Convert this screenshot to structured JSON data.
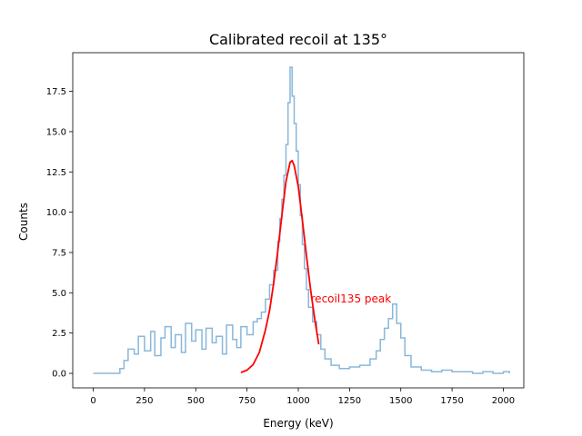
{
  "chart_data": {
    "type": "line",
    "title": "Calibrated recoil at 135°",
    "xlabel": "Energy (keV)",
    "ylabel": "Counts",
    "xlim": [
      -100,
      2100
    ],
    "ylim": [
      -0.9,
      19.9
    ],
    "xticks": [
      0,
      250,
      500,
      750,
      1000,
      1250,
      1500,
      1750,
      2000
    ],
    "xtick_labels": [
      "0",
      "250",
      "500",
      "750",
      "1000",
      "1250",
      "1500",
      "1750",
      "2000"
    ],
    "yticks": [
      0.0,
      2.5,
      5.0,
      7.5,
      10.0,
      12.5,
      15.0,
      17.5
    ],
    "ytick_labels": [
      "0.0",
      "2.5",
      "5.0",
      "7.5",
      "10.0",
      "12.5",
      "15.0",
      "17.5"
    ],
    "grid": false,
    "annotation": {
      "text": "recoil135 peak",
      "x": 1060,
      "y": 4.4,
      "color": "#ff0000"
    },
    "series": [
      {
        "kind": "spectrum",
        "color": "#89b7da",
        "x": [
          0,
          100,
          130,
          150,
          170,
          200,
          220,
          250,
          280,
          300,
          330,
          350,
          380,
          400,
          430,
          450,
          480,
          500,
          530,
          550,
          580,
          600,
          630,
          650,
          680,
          700,
          720,
          750,
          780,
          800,
          820,
          840,
          860,
          880,
          900,
          910,
          920,
          930,
          940,
          950,
          960,
          970,
          980,
          990,
          1000,
          1010,
          1020,
          1030,
          1040,
          1050,
          1070,
          1090,
          1110,
          1130,
          1160,
          1200,
          1250,
          1300,
          1350,
          1380,
          1400,
          1420,
          1440,
          1460,
          1480,
          1500,
          1520,
          1550,
          1600,
          1650,
          1700,
          1750,
          1800,
          1850,
          1900,
          1950,
          2000,
          2030
        ],
        "y": [
          0.0,
          0.0,
          0.3,
          0.8,
          1.5,
          1.2,
          2.3,
          1.4,
          2.6,
          1.1,
          2.2,
          2.9,
          1.6,
          2.4,
          1.3,
          3.1,
          2.0,
          2.7,
          1.5,
          2.8,
          1.9,
          2.3,
          1.2,
          3.0,
          2.1,
          1.6,
          2.9,
          2.4,
          3.2,
          3.4,
          3.8,
          4.6,
          5.5,
          6.4,
          8.2,
          9.6,
          10.8,
          12.3,
          14.2,
          16.8,
          19.0,
          17.2,
          15.5,
          13.8,
          11.7,
          9.8,
          8.0,
          6.5,
          5.2,
          4.1,
          3.2,
          2.4,
          1.5,
          0.9,
          0.5,
          0.3,
          0.4,
          0.5,
          0.9,
          1.4,
          2.1,
          2.8,
          3.4,
          4.3,
          3.1,
          2.2,
          1.1,
          0.4,
          0.2,
          0.1,
          0.2,
          0.1,
          0.1,
          0.0,
          0.1,
          0.0,
          0.1,
          0.0
        ]
      },
      {
        "kind": "gaussian-fit",
        "color": "#ff0000",
        "x": [
          720,
          750,
          780,
          810,
          840,
          860,
          880,
          900,
          920,
          940,
          960,
          970,
          980,
          1000,
          1020,
          1040,
          1060,
          1080,
          1100
        ],
        "y": [
          0.05,
          0.2,
          0.55,
          1.3,
          2.7,
          3.9,
          5.6,
          7.6,
          9.8,
          11.9,
          13.1,
          13.2,
          12.9,
          11.6,
          9.5,
          7.3,
          5.2,
          3.4,
          1.8
        ]
      }
    ]
  }
}
